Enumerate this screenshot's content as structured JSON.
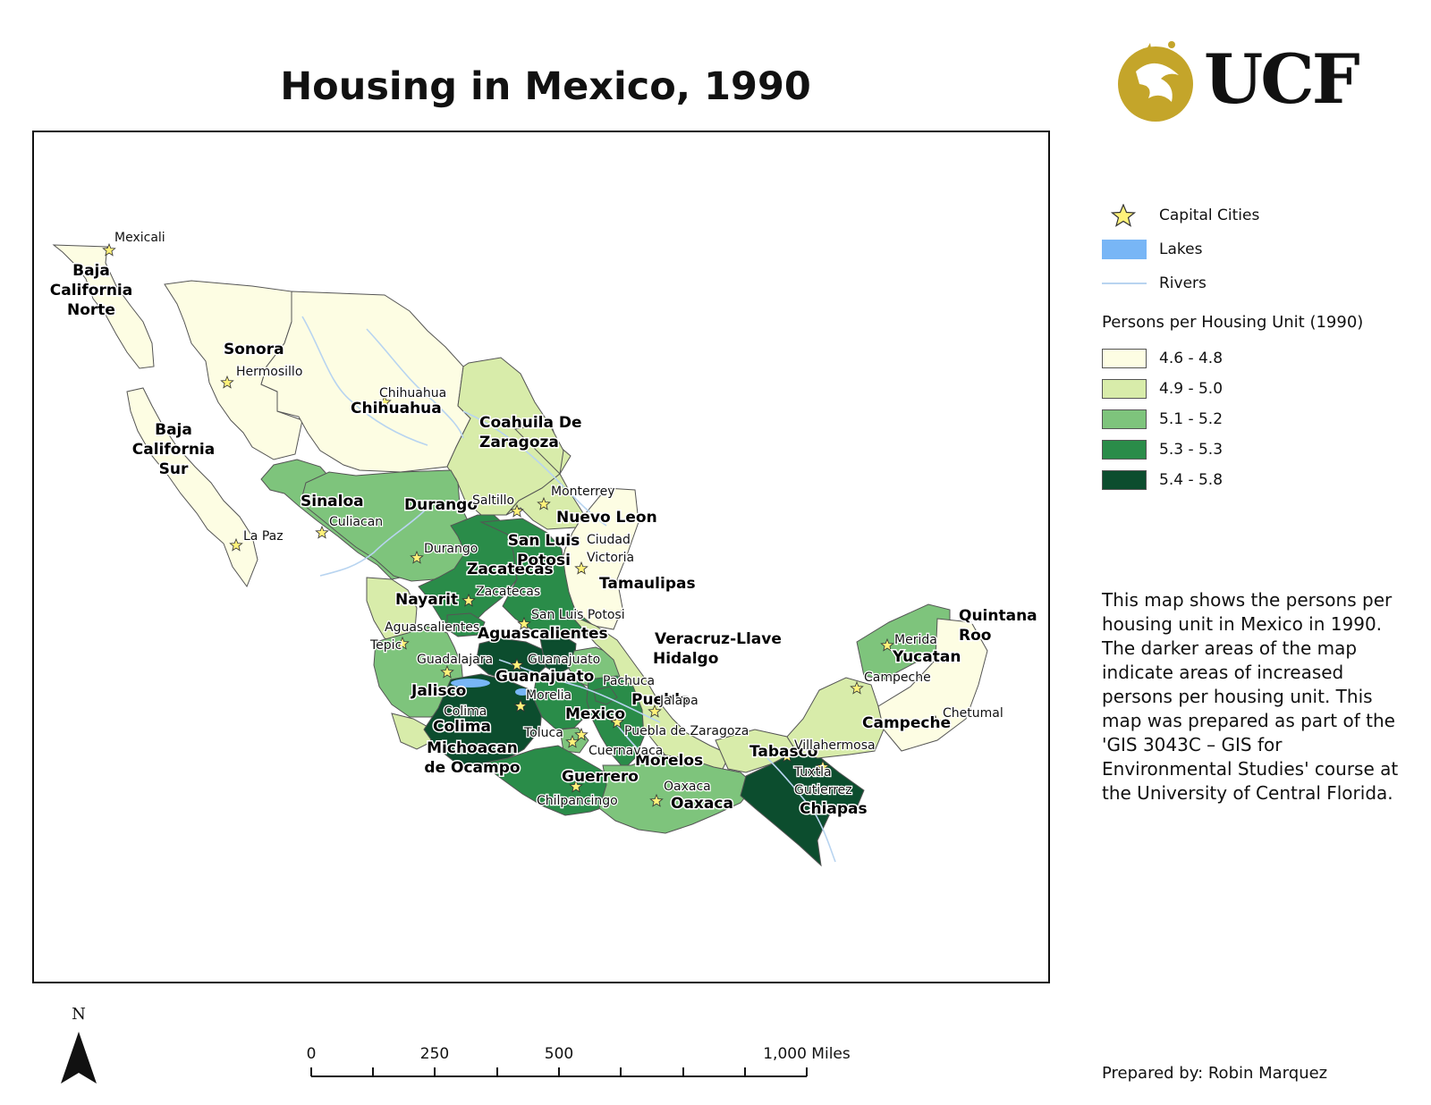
{
  "title": "Housing in Mexico, 1990",
  "logo_text": "UCF",
  "legend": {
    "capital_label": "Capital Cities",
    "lakes_label": "Lakes",
    "rivers_label": "Rivers",
    "heading": "Persons per Housing Unit (1990)",
    "classes": [
      {
        "label": "4.6 - 4.8",
        "color": "#fdfde3"
      },
      {
        "label": "4.9 - 5.0",
        "color": "#d8ecaa"
      },
      {
        "label": "5.1 - 5.2",
        "color": "#7ec47c"
      },
      {
        "label": "5.3 - 5.3",
        "color": "#2a8c49"
      },
      {
        "label": "5.4 - 5.8",
        "color": "#0c4d2e"
      }
    ],
    "lake_color": "#78b6f6",
    "river_color": "#b8d4f0",
    "star_color": "#fff27a"
  },
  "description": "This map shows the persons per housing unit in Mexico in 1990. The darker areas of the map indicate areas of increased persons per housing unit. This map was prepared as part of the 'GIS 3043C – GIS for Environmental Studies' course at the University of Central Florida.",
  "prepared_by": "Prepared by: Robin Marquez",
  "north_label": "N",
  "scale": {
    "ticks": [
      "0",
      "250",
      "500",
      "1,000 Miles"
    ]
  },
  "states": [
    {
      "id": "baja-california-norte",
      "lines": [
        "Baja",
        "California",
        "Norte"
      ],
      "class": 0
    },
    {
      "id": "baja-california-sur",
      "lines": [
        "Baja",
        "California",
        "Sur"
      ],
      "class": 0
    },
    {
      "id": "sonora",
      "lines": [
        "Sonora"
      ],
      "class": 0
    },
    {
      "id": "chihuahua",
      "lines": [
        "Chihuahua"
      ],
      "class": 0
    },
    {
      "id": "coahuila",
      "lines": [
        "Coahuila De",
        "Zaragoza"
      ],
      "class": 1
    },
    {
      "id": "nuevo-leon",
      "lines": [
        "Nuevo Leon"
      ],
      "class": 1
    },
    {
      "id": "tamaulipas",
      "lines": [
        "Tamaulipas"
      ],
      "class": 0
    },
    {
      "id": "sinaloa",
      "lines": [
        "Sinaloa"
      ],
      "class": 2
    },
    {
      "id": "durango",
      "lines": [
        "Durango"
      ],
      "class": 2
    },
    {
      "id": "zacatecas",
      "lines": [
        "Zacatecas"
      ],
      "class": 3
    },
    {
      "id": "san-luis-potosi",
      "lines": [
        "San Luis",
        "Potosi"
      ],
      "class": 3
    },
    {
      "id": "nayarit",
      "lines": [
        "Nayarit"
      ],
      "class": 1
    },
    {
      "id": "aguascalientes",
      "lines": [
        "Aguascalientes"
      ],
      "class": 3
    },
    {
      "id": "jalisco",
      "lines": [
        "Jalisco"
      ],
      "class": 2
    },
    {
      "id": "guanajuato",
      "lines": [
        "Guanajuato"
      ],
      "class": 4
    },
    {
      "id": "queretaro",
      "lines": [],
      "class": 4
    },
    {
      "id": "hidalgo",
      "lines": [
        "Hidalgo"
      ],
      "class": 2
    },
    {
      "id": "veracruz",
      "lines": [
        "Veracruz-Llave"
      ],
      "class": 1
    },
    {
      "id": "colima",
      "lines": [
        "Colima"
      ],
      "class": 1
    },
    {
      "id": "michoacan",
      "lines": [
        "Michoacan",
        "de Ocampo"
      ],
      "class": 4
    },
    {
      "id": "mexico",
      "lines": [
        "Mexico"
      ],
      "class": 3
    },
    {
      "id": "puebla",
      "lines": [
        "Puebla"
      ],
      "class": 3
    },
    {
      "id": "morelos",
      "lines": [
        "Morelos"
      ],
      "class": 2
    },
    {
      "id": "tlaxcala",
      "lines": [],
      "class": 3
    },
    {
      "id": "guerrero",
      "lines": [
        "Guerrero"
      ],
      "class": 3
    },
    {
      "id": "oaxaca",
      "lines": [
        "Oaxaca"
      ],
      "class": 2
    },
    {
      "id": "tabasco",
      "lines": [
        "Tabasco"
      ],
      "class": 1
    },
    {
      "id": "chiapas",
      "lines": [
        "Chiapas"
      ],
      "class": 4
    },
    {
      "id": "campeche",
      "lines": [
        "Campeche"
      ],
      "class": 1
    },
    {
      "id": "yucatan",
      "lines": [
        "Yucatan"
      ],
      "class": 2
    },
    {
      "id": "quintana-roo",
      "lines": [
        "Quintana",
        "Roo"
      ],
      "class": 0
    }
  ],
  "capitals": [
    "Mexicali",
    "Hermosillo",
    "Chihuahua",
    "La Paz",
    "Culiacan",
    "Durango",
    "Saltillo",
    "Monterrey",
    "Ciudad",
    "Victoria",
    "Zacatecas",
    "San Luis Potosi",
    "Aguascalientes",
    "Tepic",
    "Guadalajara",
    "Guanajuato",
    "Morelia",
    "Colima",
    "Toluca",
    "Cuernavaca",
    "Pachuca",
    "Jalapa",
    "Puebla de Zaragoza",
    "Chilpancingo",
    "Oaxaca",
    "Villahermosa",
    "Tuxtla",
    "Gutierrez",
    "Campeche",
    "Merida",
    "Chetumal"
  ]
}
